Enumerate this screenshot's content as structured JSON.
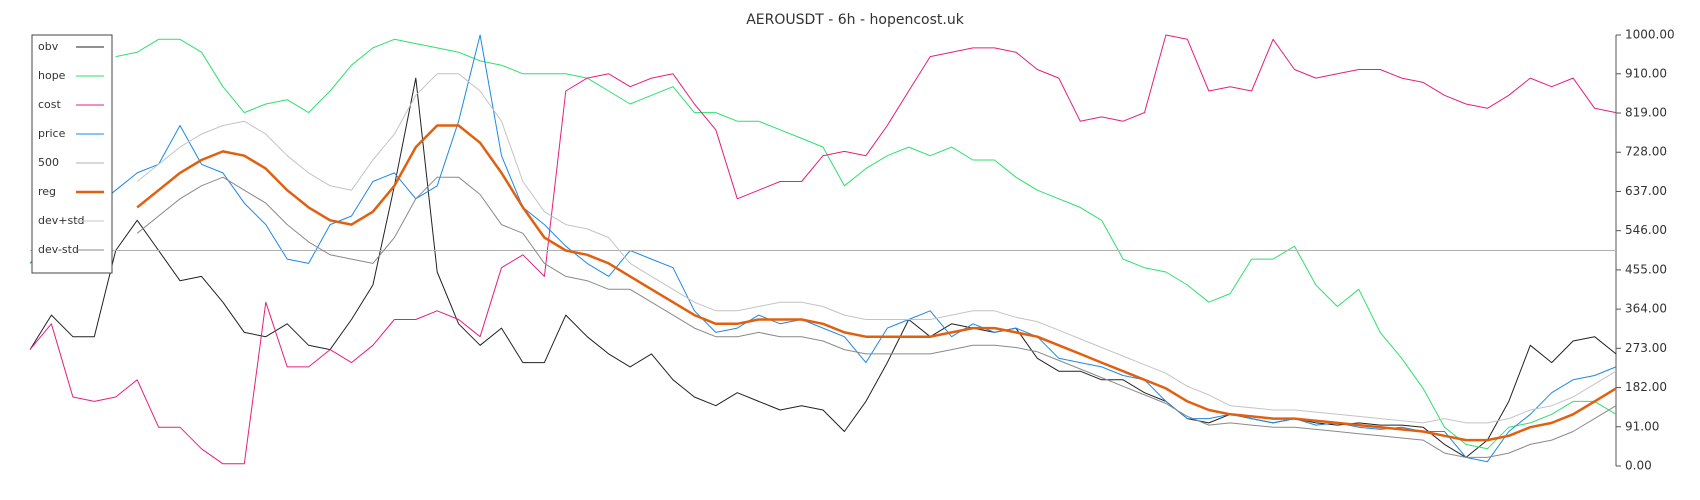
{
  "chart_data": {
    "type": "line",
    "title": "AEROUSDT - 6h - hopencost.uk",
    "legend": "upper left",
    "grid": false,
    "ylim": [
      0,
      1000
    ],
    "yticks": [
      {
        "value": 0,
        "label": "0.00"
      },
      {
        "value": 91,
        "label": "91.00"
      },
      {
        "value": 182,
        "label": "182.00"
      },
      {
        "value": 273,
        "label": "273.00"
      },
      {
        "value": 364,
        "label": "364.00"
      },
      {
        "value": 455,
        "label": "455.00"
      },
      {
        "value": 546,
        "label": "546.00"
      },
      {
        "value": 637,
        "label": "637.00"
      },
      {
        "value": 728,
        "label": "728.00"
      },
      {
        "value": 819,
        "label": "819.00"
      },
      {
        "value": 910,
        "label": "910.00"
      },
      {
        "value": 1000,
        "label": "1000.00"
      }
    ],
    "series": [
      {
        "name": "obv",
        "color": "#222222",
        "width": 1,
        "values": [
          270,
          350,
          300,
          300,
          500,
          570,
          500,
          430,
          440,
          380,
          310,
          300,
          330,
          280,
          270,
          340,
          420,
          650,
          900,
          450,
          330,
          280,
          320,
          240,
          240,
          350,
          300,
          260,
          230,
          260,
          200,
          160,
          140,
          170,
          150,
          130,
          140,
          130,
          80,
          150,
          240,
          340,
          300,
          330,
          320,
          310,
          320,
          250,
          220,
          220,
          200,
          200,
          170,
          150,
          110,
          100,
          120,
          110,
          100,
          110,
          100,
          95,
          100,
          95,
          95,
          90,
          50,
          20,
          60,
          150,
          280,
          240,
          290,
          300,
          260
        ]
      },
      {
        "name": "hope",
        "color": "#2ee06e",
        "width": 1,
        "values": [
          null,
          null,
          null,
          null,
          950,
          960,
          990,
          990,
          960,
          880,
          820,
          840,
          850,
          820,
          870,
          930,
          970,
          990,
          980,
          970,
          960,
          940,
          930,
          910,
          910,
          910,
          900,
          870,
          840,
          860,
          880,
          820,
          820,
          800,
          800,
          780,
          760,
          740,
          650,
          690,
          720,
          740,
          720,
          740,
          710,
          710,
          670,
          640,
          620,
          600,
          570,
          480,
          460,
          450,
          420,
          380,
          400,
          480,
          480,
          510,
          420,
          370,
          410,
          310,
          250,
          180,
          90,
          50,
          40,
          90,
          100,
          120,
          150,
          150,
          120
        ]
      },
      {
        "name": "cost",
        "color": "#e3207f",
        "width": 1,
        "values": [
          270,
          330,
          160,
          150,
          160,
          200,
          90,
          90,
          40,
          5,
          5,
          380,
          230,
          230,
          270,
          240,
          280,
          340,
          340,
          360,
          340,
          300,
          460,
          490,
          440,
          870,
          900,
          910,
          880,
          900,
          910,
          840,
          780,
          620,
          640,
          660,
          660,
          720,
          730,
          720,
          790,
          870,
          950,
          960,
          970,
          970,
          960,
          920,
          900,
          800,
          810,
          800,
          820,
          1000,
          990,
          870,
          880,
          870,
          990,
          920,
          900,
          910,
          920,
          920,
          900,
          890,
          860,
          840,
          830,
          860,
          900,
          880,
          900,
          830,
          820
        ]
      },
      {
        "name": "price",
        "color": "#1e88e5",
        "width": 1,
        "values": [
          470,
          520,
          560,
          600,
          640,
          680,
          700,
          790,
          700,
          680,
          610,
          560,
          480,
          470,
          560,
          580,
          660,
          680,
          620,
          650,
          800,
          1000,
          720,
          600,
          560,
          510,
          470,
          440,
          500,
          480,
          460,
          360,
          310,
          320,
          350,
          330,
          340,
          320,
          300,
          240,
          320,
          340,
          360,
          300,
          330,
          310,
          320,
          300,
          250,
          240,
          230,
          210,
          200,
          150,
          110,
          110,
          120,
          110,
          100,
          110,
          95,
          100,
          90,
          85,
          90,
          80,
          80,
          20,
          10,
          80,
          120,
          170,
          200,
          210,
          230
        ]
      },
      {
        "name": "500",
        "color": "#b0b0b0",
        "width": 1,
        "values": [
          500,
          500,
          500,
          500,
          500,
          500,
          500,
          500,
          500,
          500,
          500,
          500,
          500,
          500,
          500,
          500,
          500,
          500,
          500,
          500,
          500,
          500,
          500,
          500,
          500,
          500,
          500,
          500,
          500,
          500,
          500,
          500,
          500,
          500,
          500,
          500,
          500,
          500,
          500,
          500,
          500,
          500,
          500,
          500,
          500,
          500,
          500,
          500,
          500,
          500,
          500,
          500,
          500,
          500,
          500,
          500,
          500,
          500,
          500,
          500,
          500,
          500,
          500,
          500,
          500,
          500,
          500,
          500,
          500,
          500,
          500,
          500,
          500,
          500,
          500
        ]
      },
      {
        "name": "reg",
        "color": "#e06010",
        "width": 2.5,
        "values": [
          null,
          null,
          null,
          null,
          null,
          600,
          640,
          680,
          710,
          730,
          720,
          690,
          640,
          600,
          570,
          560,
          590,
          650,
          740,
          790,
          790,
          750,
          680,
          600,
          530,
          500,
          490,
          470,
          440,
          410,
          380,
          350,
          330,
          330,
          340,
          340,
          340,
          330,
          310,
          300,
          300,
          300,
          300,
          310,
          320,
          320,
          310,
          300,
          280,
          260,
          240,
          220,
          200,
          180,
          150,
          130,
          120,
          115,
          110,
          110,
          105,
          100,
          95,
          90,
          85,
          80,
          70,
          60,
          60,
          70,
          90,
          100,
          120,
          150,
          180
        ]
      },
      {
        "name": "dev+std",
        "color": "#c4c4c4",
        "width": 1,
        "values": [
          null,
          null,
          null,
          null,
          null,
          660,
          700,
          740,
          770,
          790,
          800,
          770,
          720,
          680,
          650,
          640,
          710,
          770,
          860,
          910,
          910,
          870,
          800,
          660,
          590,
          560,
          550,
          530,
          470,
          440,
          410,
          380,
          360,
          360,
          370,
          380,
          380,
          370,
          350,
          340,
          340,
          340,
          340,
          350,
          360,
          360,
          345,
          335,
          315,
          295,
          275,
          255,
          235,
          215,
          185,
          165,
          140,
          135,
          130,
          130,
          125,
          120,
          115,
          110,
          105,
          100,
          110,
          100,
          100,
          110,
          130,
          140,
          160,
          190,
          220
        ]
      },
      {
        "name": "dev-std",
        "color": "#8a8a8a",
        "width": 1,
        "values": [
          null,
          null,
          null,
          null,
          null,
          540,
          580,
          620,
          650,
          670,
          640,
          610,
          560,
          520,
          490,
          480,
          470,
          530,
          620,
          670,
          670,
          630,
          560,
          540,
          470,
          440,
          430,
          410,
          410,
          380,
          350,
          320,
          300,
          300,
          310,
          300,
          300,
          290,
          270,
          260,
          260,
          260,
          260,
          270,
          280,
          280,
          275,
          265,
          245,
          225,
          205,
          185,
          165,
          145,
          115,
          95,
          100,
          95,
          90,
          90,
          85,
          80,
          75,
          70,
          65,
          60,
          30,
          20,
          20,
          30,
          50,
          60,
          80,
          110,
          140
        ]
      }
    ]
  }
}
